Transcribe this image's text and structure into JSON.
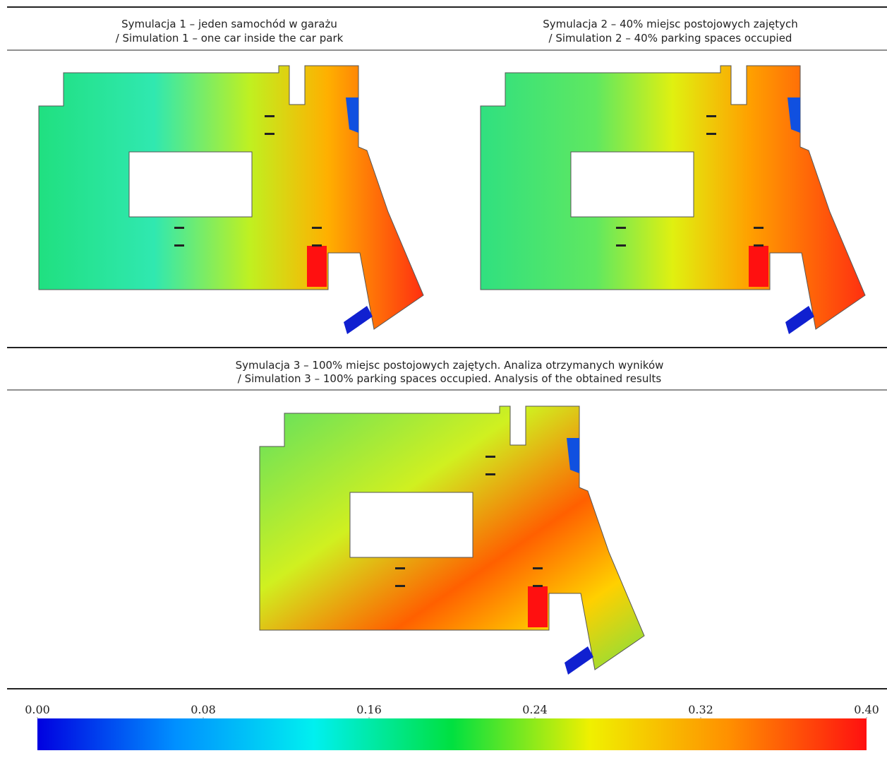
{
  "panels": [
    {
      "caption_pl": "Symulacja 1 – jeden samochód w garażu",
      "caption_en": "/ Simulation 1 – one car inside the car park"
    },
    {
      "caption_pl": "Symulacja 2 – 40% miejsc postojowych zajętych",
      "caption_en": "/ Simulation 2 – 40% parking spaces occupied"
    },
    {
      "caption_pl": "Symulacja 3 – 100% miejsc postojowych zajętych. Analiza otrzymanych wyników",
      "caption_en": "/ Simulation 3 – 100% parking spaces occupied. Analysis of the obtained results"
    }
  ],
  "colorbar": {
    "lim": [
      0,
      0.4
    ],
    "ticks": [
      {
        "value": 0,
        "label": "0.00"
      },
      {
        "value": 0.08,
        "label": "0.08"
      },
      {
        "value": 0.16,
        "label": "0.16"
      },
      {
        "value": 0.24,
        "label": "0.24"
      },
      {
        "value": 0.32,
        "label": "0.32"
      },
      {
        "value": 0.4,
        "label": "0.40"
      }
    ],
    "colors": [
      "#0000e0",
      "#0090ff",
      "#00f0f0",
      "#00e040",
      "#f0f000",
      "#ff9000",
      "#ff1010"
    ]
  }
}
